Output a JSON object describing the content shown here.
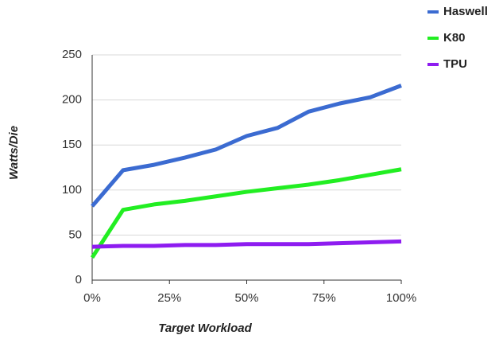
{
  "chart_data": {
    "type": "line",
    "x_label": "Target Workload",
    "y_label": "Watts/Die",
    "x": [
      0,
      10,
      20,
      30,
      40,
      50,
      60,
      70,
      80,
      90,
      100
    ],
    "series": [
      {
        "name": "Haswell",
        "color": "#3b6bd1",
        "values": [
          82,
          122,
          128,
          136,
          145,
          160,
          169,
          187,
          196,
          203,
          216
        ]
      },
      {
        "name": "K80",
        "color": "#22ee22",
        "values": [
          25,
          78,
          84,
          88,
          93,
          98,
          102,
          106,
          111,
          117,
          123
        ]
      },
      {
        "name": "TPU",
        "color": "#8e1cf0",
        "values": [
          37,
          38,
          38,
          39,
          39,
          40,
          40,
          40,
          41,
          42,
          43
        ]
      }
    ],
    "xlim": [
      0,
      100
    ],
    "xticks": [
      {
        "value": 0,
        "label": "0%"
      },
      {
        "value": 25,
        "label": "25%"
      },
      {
        "value": 50,
        "label": "50%"
      },
      {
        "value": 75,
        "label": "75%"
      },
      {
        "value": 100,
        "label": "100%"
      }
    ],
    "ylim": [
      0,
      250
    ],
    "yticks": [
      0,
      50,
      100,
      150,
      200,
      250
    ],
    "grid": true,
    "legend": "top-right"
  }
}
